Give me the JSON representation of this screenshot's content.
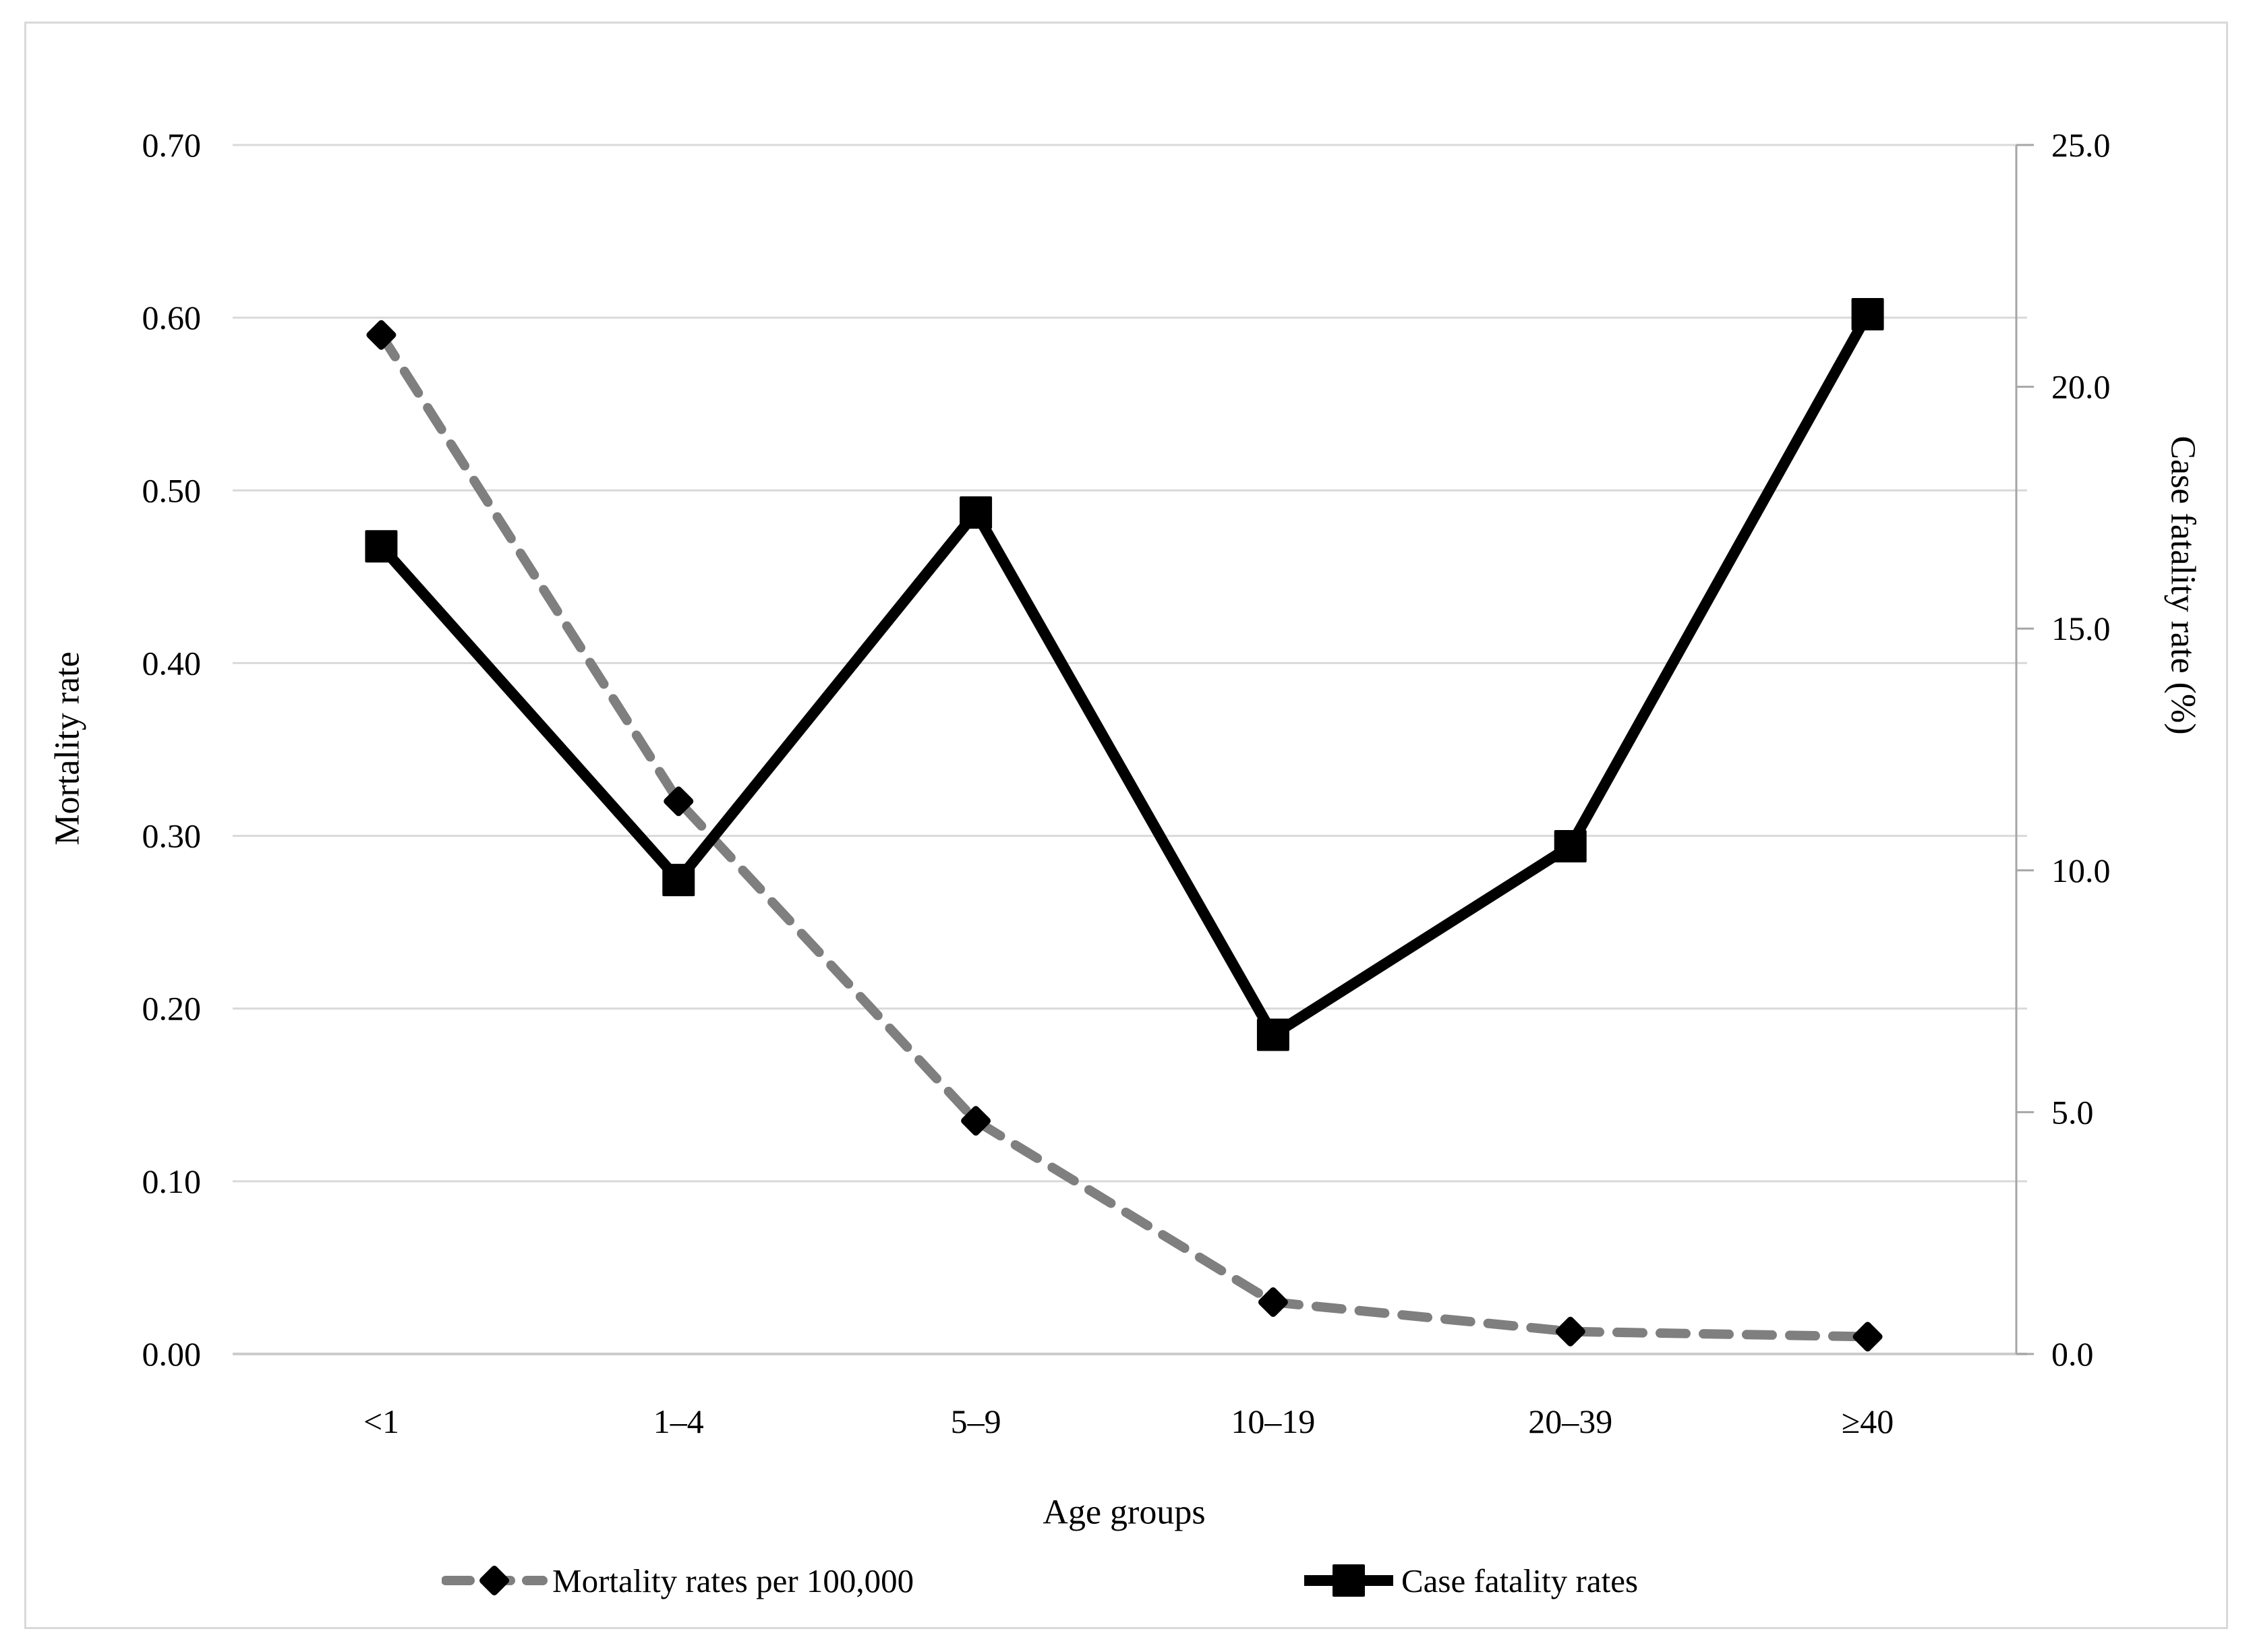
{
  "figure": {
    "background": "#ffffff",
    "border_color": "#d9d9d9"
  },
  "chart_data": {
    "type": "line",
    "title": "",
    "categories": [
      "<1",
      "1–4",
      "5–9",
      "10–19",
      "20–39",
      "≥40"
    ],
    "series": [
      {
        "name": "Mortality rates per 100,000",
        "axis": "left",
        "values": [
          0.59,
          0.32,
          0.135,
          0.03,
          0.013,
          0.01
        ],
        "line_color": "#7f7f7f",
        "line_style": "dashed",
        "marker": "diamond",
        "marker_color": "#000000"
      },
      {
        "name": "Case fatality rates",
        "axis": "right",
        "values": [
          16.7,
          9.8,
          17.4,
          6.6,
          10.5,
          21.5
        ],
        "line_color": "#000000",
        "line_style": "solid",
        "marker": "square",
        "marker_color": "#000000"
      }
    ],
    "x_axis": {
      "title": "Age groups",
      "tick_labels": [
        "<1",
        "1–4",
        "5–9",
        "10–19",
        "20–39",
        "≥40"
      ]
    },
    "y_axis_left": {
      "title": "Mortality rate",
      "min": 0.0,
      "max": 0.7,
      "step": 0.1,
      "tick_labels": [
        "0.00",
        "0.10",
        "0.20",
        "0.30",
        "0.40",
        "0.50",
        "0.60",
        "0.70"
      ]
    },
    "y_axis_right": {
      "title": "Case fatality rate (%)",
      "min": 0.0,
      "max": 25.0,
      "step": 5.0,
      "tick_labels": [
        "0.0",
        "5.0",
        "10.0",
        "15.0",
        "20.0",
        "25.0"
      ]
    },
    "grid": "horizontal",
    "gridline_color": "#d9d9d9",
    "axis_line_color": "#cccccc",
    "right_spine_color": "#a6a6a6",
    "legend_position": "bottom"
  }
}
